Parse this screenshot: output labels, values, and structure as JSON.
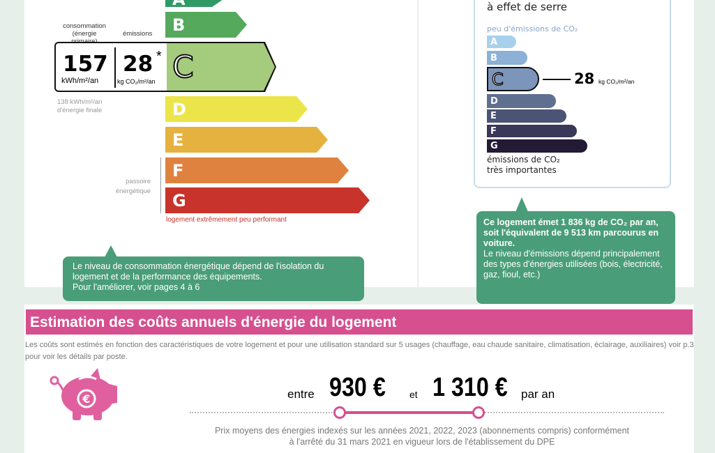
{
  "energy": {
    "label_consumption": "consommation",
    "label_primary": "(énergie primaire)",
    "label_emissions": "émissions",
    "consumption_value": "157",
    "consumption_unit": "kWh/m²/an",
    "emissions_value": "28",
    "emissions_mark": "*",
    "emissions_unit": "kg CO₂/m²/an",
    "final_energy_1": "138 kWh/m²/an",
    "final_energy_2": "d'énergie finale",
    "passoire_1": "passoire",
    "passoire_2": "énergétique",
    "worst_label": "logement extrêmement peu performant",
    "current_class": "C",
    "classes": [
      {
        "letter": "A",
        "color": "#2f9a66"
      },
      {
        "letter": "B",
        "color": "#55a95c"
      },
      {
        "letter": "C",
        "color": "#a4cc7c"
      },
      {
        "letter": "D",
        "color": "#ece54a"
      },
      {
        "letter": "E",
        "color": "#e6b23f"
      },
      {
        "letter": "F",
        "color": "#df823f"
      },
      {
        "letter": "G",
        "color": "#c8332b"
      }
    ],
    "callout_1": "Le niveau de consommation énergétique dépend de l'isolation du",
    "callout_2": "logement et de la performance des équipements.",
    "callout_3": "Pour l'améliorer, voir pages 4 à 6"
  },
  "ghg": {
    "title": "à effet de serre",
    "top_label": "peu d'émissions de CO₂",
    "bottom_label_1": "émissions de CO₂",
    "bottom_label_2": "très importantes",
    "value": "28",
    "unit": "kg CO₂/m²/an",
    "current_class": "C",
    "classes": [
      {
        "letter": "A",
        "color": "#a7d0ec"
      },
      {
        "letter": "B",
        "color": "#8cb0d6"
      },
      {
        "letter": "C",
        "color": "#7c95ba"
      },
      {
        "letter": "D",
        "color": "#5f6f90"
      },
      {
        "letter": "E",
        "color": "#4c5476"
      },
      {
        "letter": "F",
        "color": "#393858"
      },
      {
        "letter": "G",
        "color": "#231a34"
      }
    ],
    "callout_bold": "Ce logement émet 1 836 kg de CO₂ par an, soit l'équivalent de 9 513 km parcourus en voiture.",
    "callout_text": "Le niveau d'émissions dépend principalement des types d'énergies utilisées (bois, électricité, gaz, fioul, etc.)"
  },
  "costs": {
    "title": "Estimation des coûts annuels d'énergie du logement",
    "description": "Les coûts sont estimés en fonction des caractéristiques de votre logement et pour une utilisation standard sur 5 usages (chauffage, eau chaude sanitaire, climatisation, éclairage, auxiliaires) voir p.3 pour voir les détails par poste.",
    "entre": "entre",
    "min": "930 €",
    "et": "et",
    "max": "1 310 €",
    "per_year": "par an",
    "note_1": "Prix moyens des énergies indexés sur les années 2021, 2022, 2023 (abonnements compris) conformément",
    "note_2": "à l'arrêté du 31 mars 2021 en vigueur lors de l'établissement du DPE",
    "accent": "#d64f8f"
  }
}
